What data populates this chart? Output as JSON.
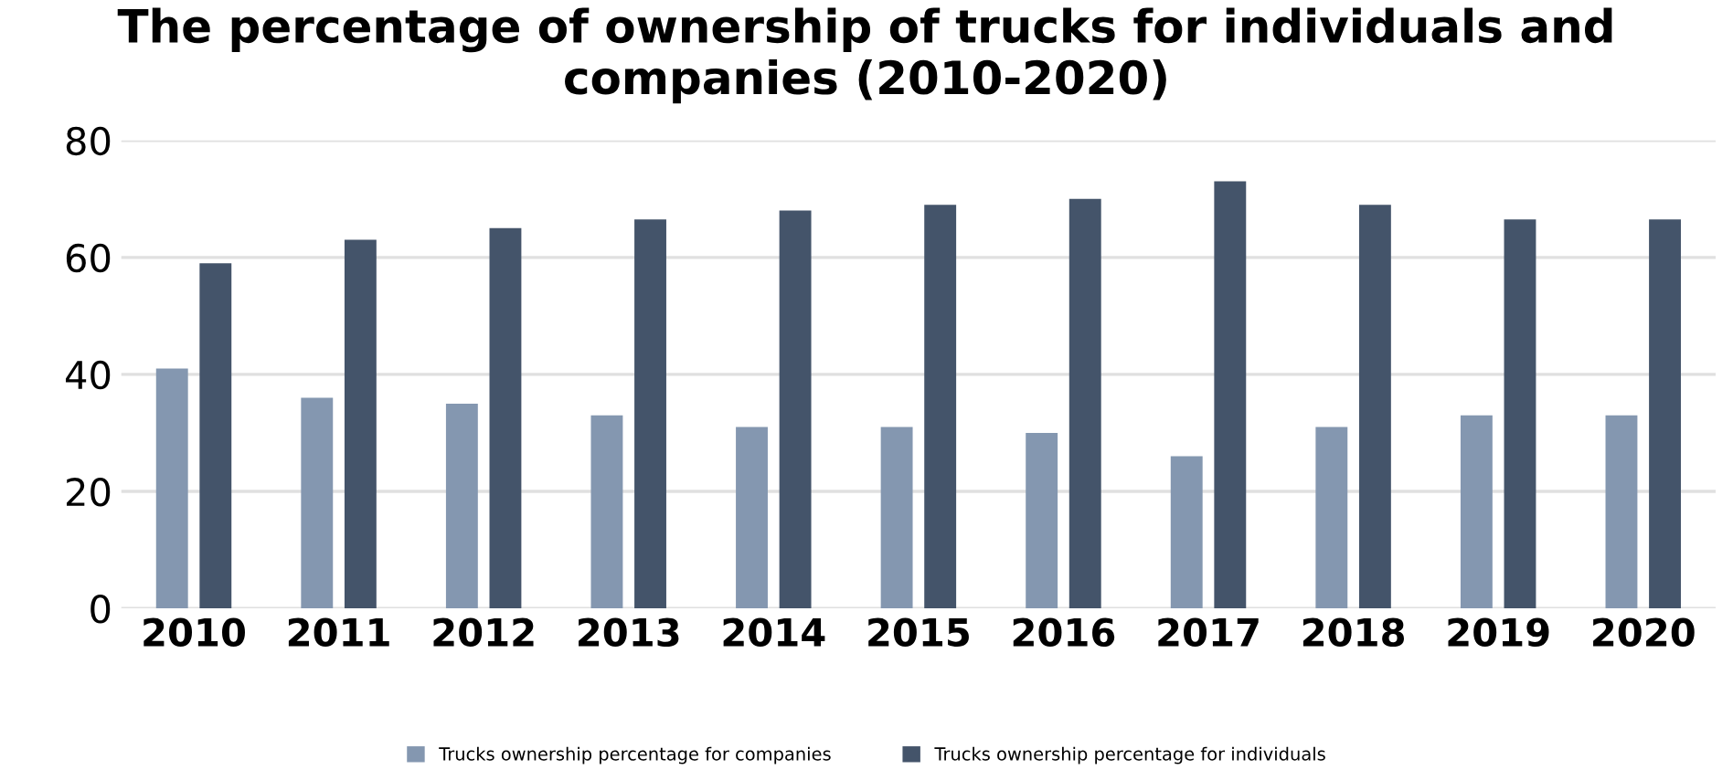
{
  "chart_data": {
    "type": "bar",
    "title": "The percentage of ownership of trucks for individuals and companies (2010-2020)",
    "categories": [
      "2010",
      "2011",
      "2012",
      "2013",
      "2014",
      "2015",
      "2016",
      "2017",
      "2018",
      "2019",
      "2020"
    ],
    "series": [
      {
        "name": "Trucks ownership percentage for companies",
        "color": "#8497b0",
        "values": [
          41,
          36,
          35,
          33,
          31,
          31,
          30,
          26,
          31,
          33,
          33
        ]
      },
      {
        "name": "Trucks ownership percentage for individuals",
        "color": "#44546a",
        "values": [
          59,
          63,
          65,
          66.5,
          68,
          69,
          70,
          73,
          69,
          66.5,
          66.5
        ]
      }
    ],
    "ylim": [
      0,
      80
    ],
    "yticks": [
      0,
      20,
      40,
      60,
      80
    ],
    "grid": "y",
    "legend": "bottom"
  }
}
